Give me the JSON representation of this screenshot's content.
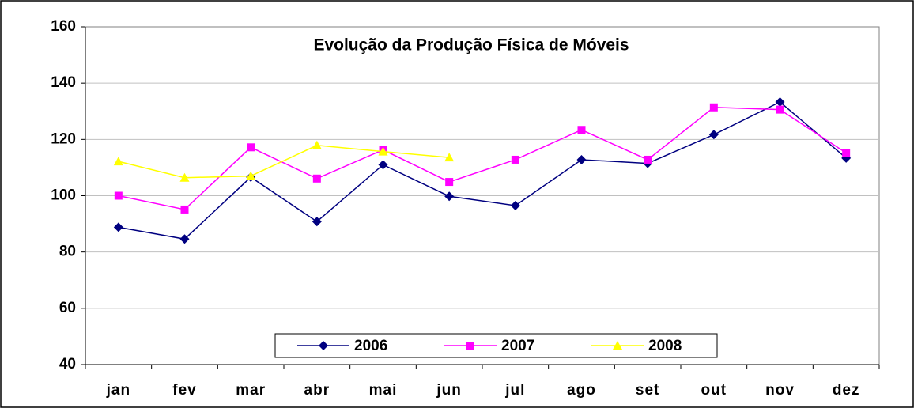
{
  "chart_data": {
    "type": "line",
    "title": "Evolução da Produção Física de Móveis",
    "categories": [
      "jan",
      "fev",
      "mar",
      "abr",
      "mai",
      "jun",
      "jul",
      "ago",
      "set",
      "out",
      "nov",
      "dez"
    ],
    "series": [
      {
        "name": "2006",
        "color": "#000080",
        "marker": "diamond",
        "values": [
          88.8,
          84.6,
          106.6,
          90.8,
          111.0,
          99.8,
          96.5,
          112.8,
          111.5,
          121.7,
          133.3,
          113.4
        ]
      },
      {
        "name": "2007",
        "color": "#ff00ff",
        "marker": "square",
        "values": [
          100.0,
          95.1,
          117.2,
          106.1,
          116.3,
          104.9,
          112.8,
          123.4,
          112.8,
          131.4,
          130.6,
          115.2
        ]
      },
      {
        "name": "2008",
        "color": "#ffff00",
        "marker": "triangle",
        "values": [
          112.2,
          106.4,
          107.0,
          117.9,
          115.7,
          113.6,
          null,
          null,
          null,
          null,
          null,
          null
        ]
      }
    ],
    "ylim": [
      40,
      160
    ],
    "yticks": [
      40,
      60,
      80,
      100,
      120,
      140,
      160
    ],
    "grid": true,
    "legend": "bottom"
  }
}
